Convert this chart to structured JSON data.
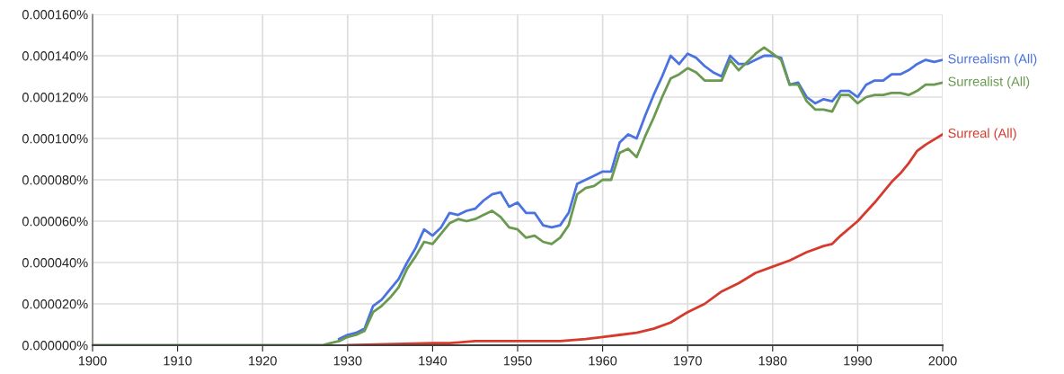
{
  "chart_data": {
    "type": "line",
    "xlim": [
      1900,
      2000
    ],
    "xticks": [
      1900,
      1910,
      1920,
      1930,
      1940,
      1950,
      1960,
      1970,
      1980,
      1990,
      2000
    ],
    "ylim": [
      0,
      0.00016
    ],
    "yticks": [
      {
        "value": 0,
        "label": "0.000000%"
      },
      {
        "value": 2e-05,
        "label": "0.000020%"
      },
      {
        "value": 4e-05,
        "label": "0.000040%"
      },
      {
        "value": 6e-05,
        "label": "0.000060%"
      },
      {
        "value": 8e-05,
        "label": "0.000080%"
      },
      {
        "value": 0.0001,
        "label": "0.000100%"
      },
      {
        "value": 0.00012,
        "label": "0.000120%"
      },
      {
        "value": 0.00014,
        "label": "0.000140%"
      },
      {
        "value": 0.00016,
        "label": "0.000160%"
      }
    ],
    "grid": true,
    "legend": false,
    "marker": "none",
    "line_style": "solid",
    "series": [
      {
        "name": "Surrealism (All)",
        "color": "#4a72e0",
        "x": [
          1929,
          1930,
          1931,
          1932,
          1933,
          1934,
          1935,
          1936,
          1937,
          1938,
          1939,
          1940,
          1941,
          1942,
          1943,
          1944,
          1945,
          1946,
          1947,
          1948,
          1949,
          1950,
          1951,
          1952,
          1953,
          1954,
          1955,
          1956,
          1957,
          1958,
          1959,
          1960,
          1961,
          1962,
          1963,
          1964,
          1965,
          1966,
          1967,
          1968,
          1969,
          1970,
          1971,
          1972,
          1973,
          1974,
          1975,
          1976,
          1977,
          1978,
          1979,
          1980,
          1981,
          1982,
          1983,
          1984,
          1985,
          1986,
          1987,
          1988,
          1989,
          1990,
          1991,
          1992,
          1993,
          1994,
          1995,
          1996,
          1997,
          1998,
          1999,
          2000
        ],
        "values": [
          3e-06,
          5e-06,
          6e-06,
          8e-06,
          1.9e-05,
          2.2e-05,
          2.7e-05,
          3.2e-05,
          4e-05,
          4.7e-05,
          5.6e-05,
          5.3e-05,
          5.7e-05,
          6.4e-05,
          6.3e-05,
          6.5e-05,
          6.6e-05,
          7e-05,
          7.3e-05,
          7.4e-05,
          6.7e-05,
          6.9e-05,
          6.4e-05,
          6.4e-05,
          5.8e-05,
          5.7e-05,
          5.8e-05,
          6.4e-05,
          7.8e-05,
          8e-05,
          8.2e-05,
          8.4e-05,
          8.4e-05,
          9.8e-05,
          0.000102,
          0.0001,
          0.000111,
          0.000121,
          0.00013,
          0.00014,
          0.000136,
          0.000141,
          0.000139,
          0.000135,
          0.000132,
          0.00013,
          0.00014,
          0.000136,
          0.000136,
          0.000138,
          0.00014,
          0.00014,
          0.000139,
          0.000126,
          0.000127,
          0.00012,
          0.000117,
          0.000119,
          0.000118,
          0.000123,
          0.000123,
          0.00012,
          0.000126,
          0.000128,
          0.000128,
          0.000131,
          0.000131,
          0.000133,
          0.000136,
          0.000138,
          0.000137,
          0.000138
        ]
      },
      {
        "name": "Surrealist (All)",
        "color": "#6a9a50",
        "x": [
          1900,
          1910,
          1920,
          1925,
          1927,
          1928,
          1929,
          1930,
          1931,
          1932,
          1933,
          1934,
          1935,
          1936,
          1937,
          1938,
          1939,
          1940,
          1941,
          1942,
          1943,
          1944,
          1945,
          1946,
          1947,
          1948,
          1949,
          1950,
          1951,
          1952,
          1953,
          1954,
          1955,
          1956,
          1957,
          1958,
          1959,
          1960,
          1961,
          1962,
          1963,
          1964,
          1965,
          1966,
          1967,
          1968,
          1969,
          1970,
          1971,
          1972,
          1973,
          1974,
          1975,
          1976,
          1977,
          1978,
          1979,
          1980,
          1981,
          1982,
          1983,
          1984,
          1985,
          1986,
          1987,
          1988,
          1989,
          1990,
          1991,
          1992,
          1993,
          1994,
          1995,
          1996,
          1997,
          1998,
          1999,
          2000
        ],
        "values": [
          0,
          0,
          0,
          0,
          0,
          1e-06,
          2e-06,
          4e-06,
          5e-06,
          7e-06,
          1.6e-05,
          1.9e-05,
          2.3e-05,
          2.8e-05,
          3.7e-05,
          4.3e-05,
          5e-05,
          4.9e-05,
          5.4e-05,
          5.9e-05,
          6.1e-05,
          6e-05,
          6.1e-05,
          6.3e-05,
          6.5e-05,
          6.2e-05,
          5.7e-05,
          5.6e-05,
          5.2e-05,
          5.3e-05,
          5e-05,
          4.9e-05,
          5.2e-05,
          5.8e-05,
          7.3e-05,
          7.6e-05,
          7.7e-05,
          8e-05,
          8e-05,
          9.3e-05,
          9.5e-05,
          9.1e-05,
          0.000101,
          0.00011,
          0.00012,
          0.000129,
          0.000131,
          0.000134,
          0.000132,
          0.000128,
          0.000128,
          0.000128,
          0.000138,
          0.000133,
          0.000137,
          0.000141,
          0.000144,
          0.000141,
          0.000138,
          0.000126,
          0.000126,
          0.000118,
          0.000114,
          0.000114,
          0.000113,
          0.000121,
          0.000121,
          0.000117,
          0.00012,
          0.000121,
          0.000121,
          0.000122,
          0.000122,
          0.000121,
          0.000123,
          0.000126,
          0.000126,
          0.000127
        ]
      },
      {
        "name": "Surreal (All)",
        "color": "#d63a2c",
        "x": [
          1930,
          1940,
          1942,
          1945,
          1947,
          1949,
          1950,
          1952,
          1955,
          1958,
          1960,
          1962,
          1964,
          1966,
          1968,
          1970,
          1972,
          1974,
          1976,
          1978,
          1980,
          1982,
          1984,
          1986,
          1987,
          1988,
          1990,
          1992,
          1994,
          1995,
          1996,
          1997,
          1998,
          2000
        ],
        "values": [
          0,
          1e-06,
          1e-06,
          2e-06,
          2e-06,
          2e-06,
          2e-06,
          2e-06,
          2e-06,
          3e-06,
          4e-06,
          5e-06,
          6e-06,
          8e-06,
          1.1e-05,
          1.6e-05,
          2e-05,
          2.6e-05,
          3e-05,
          3.5e-05,
          3.8e-05,
          4.1e-05,
          4.5e-05,
          4.8e-05,
          4.9e-05,
          5.3e-05,
          6e-05,
          6.9e-05,
          7.9e-05,
          8.3e-05,
          8.8e-05,
          9.4e-05,
          9.7e-05,
          0.000102
        ]
      }
    ]
  }
}
